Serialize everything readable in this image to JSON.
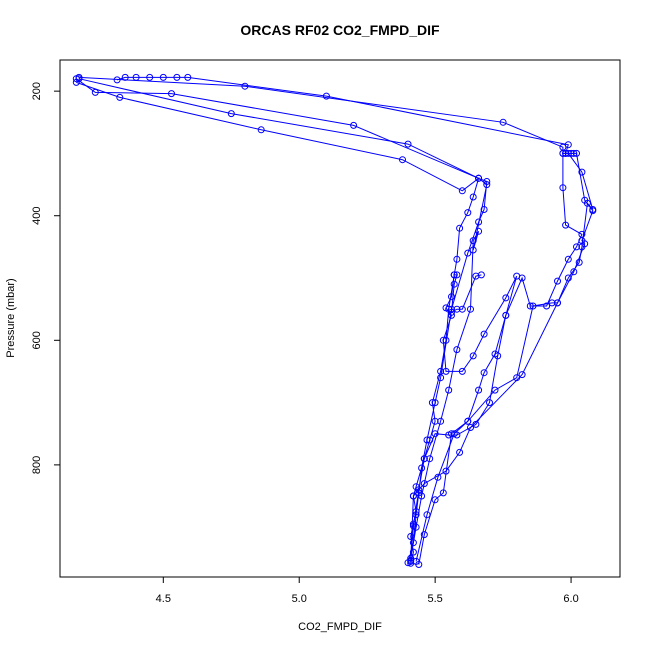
{
  "chart_data": {
    "type": "line",
    "title": "ORCAS RF02 CO2_FMPD_DIF",
    "xlabel": "CO2_FMPD_DIF",
    "ylabel": "Pressure (mbar)",
    "xlim": [
      4.12,
      6.18
    ],
    "ylim": [
      980,
      150
    ],
    "x_ticks": [
      4.5,
      5.0,
      5.5,
      6.0
    ],
    "x_tick_labels": [
      "4.5",
      "5.0",
      "5.5",
      "6.0"
    ],
    "y_ticks": [
      200,
      400,
      600,
      800
    ],
    "y_tick_labels": [
      "200",
      "400",
      "600",
      "800"
    ],
    "grid": false,
    "color": "#0000ff",
    "series": [
      {
        "x": [
          5.41,
          5.42,
          5.41,
          5.42,
          5.43,
          5.42,
          5.43,
          5.46,
          5.48,
          5.5,
          5.49,
          5.52,
          5.54,
          5.55,
          5.57,
          5.58,
          5.59,
          5.62,
          5.64,
          5.66,
          5.6,
          5.38,
          4.86,
          4.34,
          4.18
        ],
        "y": [
          958,
          940,
          915,
          895,
          875,
          850,
          835,
          790,
          760,
          730,
          700,
          650,
          600,
          550,
          495,
          470,
          420,
          395,
          370,
          340,
          360,
          310,
          262,
          210,
          186
        ]
      },
      {
        "x": [
          5.4,
          5.42,
          5.43,
          5.44,
          5.45,
          5.47,
          5.5,
          5.52,
          5.56,
          5.62,
          5.66,
          5.68,
          5.69,
          5.66,
          5.2,
          4.53,
          4.25,
          4.18
        ],
        "y": [
          957,
          925,
          880,
          845,
          805,
          760,
          700,
          660,
          550,
          460,
          410,
          390,
          345,
          340,
          255,
          204,
          202,
          180
        ]
      },
      {
        "x": [
          5.41,
          5.43,
          5.45,
          5.48,
          5.52,
          5.55,
          5.58,
          5.63,
          5.64,
          5.66,
          5.64,
          5.69,
          5.66,
          5.4,
          4.75,
          4.19
        ],
        "y": [
          950,
          900,
          850,
          790,
          730,
          680,
          615,
          550,
          440,
          425,
          455,
          350,
          340,
          285,
          236,
          180
        ]
      },
      {
        "x": [
          5.41,
          5.42,
          5.44,
          5.46,
          5.5,
          5.55,
          5.58,
          5.65,
          5.7,
          5.73,
          5.76,
          5.8,
          5.76,
          5.68,
          5.64,
          5.6,
          5.54,
          5.53,
          5.56,
          5.54,
          5.56,
          5.57,
          5.58,
          5.57,
          5.56,
          5.58,
          5.6,
          5.65,
          5.67
        ],
        "y": [
          953,
          898,
          840,
          790,
          750,
          752,
          752,
          735,
          700,
          625,
          560,
          497,
          532,
          590,
          625,
          650,
          650,
          600,
          560,
          548,
          530,
          495,
          495,
          510,
          555,
          550,
          550,
          497,
          495
        ]
      },
      {
        "x": [
          5.44,
          5.46,
          5.5,
          5.53,
          5.56,
          5.62,
          5.66,
          5.68,
          5.72,
          5.76,
          5.82,
          5.85,
          5.91,
          5.95,
          5.99,
          6.02,
          6.04,
          5.98,
          5.97,
          5.97,
          5.98,
          6.0,
          6.01
        ],
        "y": [
          960,
          912,
          856,
          845,
          750,
          730,
          680,
          652,
          622,
          560,
          500,
          545,
          545,
          505,
          470,
          450,
          430,
          415,
          355,
          300,
          300,
          300,
          300
        ]
      },
      {
        "x": [
          5.43,
          5.47,
          5.51,
          5.57,
          5.62,
          5.72,
          5.8,
          5.86,
          5.93,
          5.95,
          5.99,
          6.03,
          6.04,
          6.06,
          6.08,
          6.04,
          5.99,
          5.97,
          5.97,
          5.75,
          4.8,
          4.19
        ],
        "y": [
          955,
          880,
          820,
          750,
          730,
          680,
          660,
          545,
          540,
          540,
          500,
          475,
          450,
          380,
          390,
          330,
          300,
          300,
          290,
          250,
          192,
          178
        ]
      },
      {
        "x": [
          5.41,
          5.42,
          5.46,
          5.54,
          5.59,
          5.63,
          5.82,
          5.95,
          6.01,
          6.05,
          6.04,
          6.08,
          6.05,
          6.02,
          5.98,
          5.99,
          5.1,
          4.59,
          4.55,
          4.5,
          4.45,
          4.4,
          4.36,
          4.33
        ],
        "y": [
          955,
          850,
          830,
          810,
          780,
          740,
          655,
          540,
          490,
          445,
          440,
          392,
          375,
          300,
          300,
          286,
          208,
          178,
          178,
          178,
          178,
          178,
          178,
          182
        ]
      }
    ]
  }
}
